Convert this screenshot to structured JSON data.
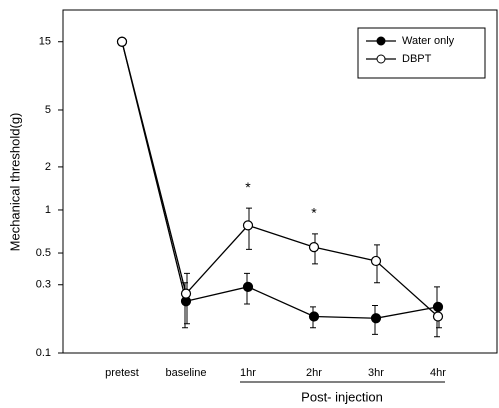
{
  "chart_data": {
    "type": "line",
    "y_label": "Mechanical threshold(g)",
    "x_label": "Post- injection",
    "categories": [
      "pretest",
      "baseline",
      "1hr",
      "2hr",
      "3hr",
      "4hr"
    ],
    "series": [
      {
        "name": "Water only",
        "color": "#000000",
        "marker": "filled",
        "values": [
          15,
          0.23,
          0.29,
          0.18,
          0.175,
          0.21
        ],
        "errors": [
          null,
          0.08,
          0.07,
          0.03,
          0.04,
          0.08
        ]
      },
      {
        "name": "DBPT",
        "color": "#000000",
        "marker": "open",
        "values": [
          15,
          0.26,
          0.78,
          0.55,
          0.44,
          0.18
        ],
        "errors": [
          null,
          0.1,
          0.25,
          0.13,
          0.13,
          0.03
        ]
      }
    ],
    "annotations": [
      {
        "text": "*",
        "category": 2
      },
      {
        "text": "*",
        "category": 3
      }
    ],
    "ylim": [
      0.1,
      25
    ],
    "log_y": true,
    "yticks": [
      0.1,
      0.3,
      0.5,
      1,
      2,
      5,
      15
    ],
    "legend": "upper right"
  }
}
